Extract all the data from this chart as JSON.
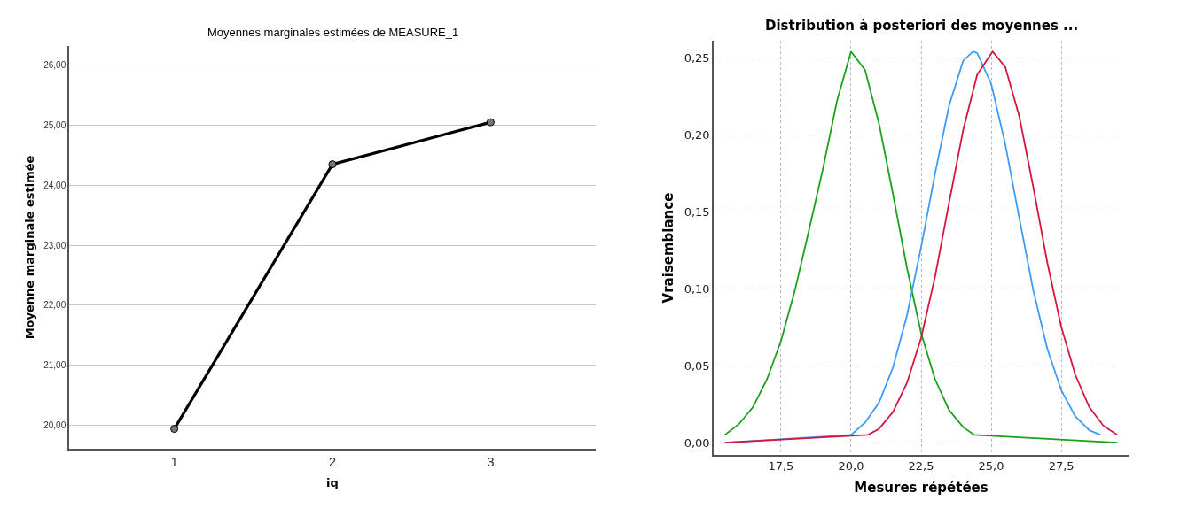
{
  "chart_data": [
    {
      "type": "line",
      "title": "Moyennes marginales estimées de MEASURE_1",
      "xlabel": "iq",
      "ylabel": "Moyenne marginale estimée",
      "categories": [
        "1",
        "2",
        "3"
      ],
      "series": [
        {
          "color": "#000000",
          "values": [
            19.94,
            24.35,
            25.05
          ]
        }
      ],
      "ylim": [
        19.61,
        26.32
      ],
      "yticks": [
        {
          "value": 20,
          "label": "20,00"
        },
        {
          "value": 21,
          "label": "21,00"
        },
        {
          "value": 22,
          "label": "22,00"
        },
        {
          "value": 23,
          "label": "23,00"
        },
        {
          "value": 24,
          "label": "24,00"
        },
        {
          "value": 25,
          "label": "25,00"
        },
        {
          "value": 26,
          "label": "26,00"
        }
      ],
      "grid": "y",
      "marker": "circle",
      "line_style": "solid"
    },
    {
      "type": "line",
      "title": "Distribution à posteriori des moyennes ...",
      "xlabel": "Mesures répétées",
      "ylabel": "Vraisemblance",
      "series": [
        {
          "color": "#1aa11a",
          "x": [
            15.5,
            16.0,
            16.5,
            17.0,
            17.5,
            18.0,
            18.5,
            19.0,
            19.5,
            20.0,
            20.5,
            21.0,
            21.5,
            22.0,
            22.5,
            23.0,
            23.5,
            24.0,
            24.4,
            29.5
          ],
          "values": [
            0.005,
            0.012,
            0.023,
            0.041,
            0.066,
            0.099,
            0.138,
            0.178,
            0.222,
            0.254,
            0.242,
            0.207,
            0.161,
            0.113,
            0.071,
            0.041,
            0.021,
            0.01,
            0.005,
            0.0
          ]
        },
        {
          "color": "#3d9bf5",
          "x": [
            15.5,
            20.0,
            20.5,
            21.0,
            21.5,
            22.0,
            22.5,
            23.0,
            23.5,
            24.0,
            24.35,
            24.5,
            25.0,
            25.5,
            26.0,
            26.5,
            27.0,
            27.5,
            28.0,
            28.5,
            28.9
          ],
          "values": [
            0.0,
            0.005,
            0.013,
            0.026,
            0.049,
            0.083,
            0.127,
            0.175,
            0.219,
            0.248,
            0.254,
            0.253,
            0.233,
            0.194,
            0.146,
            0.099,
            0.061,
            0.034,
            0.017,
            0.008,
            0.005
          ]
        },
        {
          "color": "#d4163c",
          "x": [
            15.5,
            20.6,
            21.0,
            21.5,
            22.0,
            22.5,
            23.0,
            23.5,
            24.0,
            24.5,
            25.05,
            25.5,
            26.0,
            26.5,
            27.0,
            27.5,
            28.0,
            28.5,
            29.0,
            29.5
          ],
          "values": [
            0.0,
            0.005,
            0.009,
            0.02,
            0.039,
            0.068,
            0.108,
            0.156,
            0.203,
            0.239,
            0.254,
            0.244,
            0.212,
            0.166,
            0.117,
            0.075,
            0.044,
            0.023,
            0.011,
            0.005
          ]
        }
      ],
      "xlim": [
        15.1,
        29.9
      ],
      "xticks": [
        {
          "value": 17.5,
          "label": "17,5"
        },
        {
          "value": 20,
          "label": "20,0"
        },
        {
          "value": 22.5,
          "label": "22,5"
        },
        {
          "value": 25,
          "label": "25,0"
        },
        {
          "value": 27.5,
          "label": "27,5"
        }
      ],
      "ylim": [
        -0.008,
        0.261
      ],
      "yticks": [
        {
          "value": 0,
          "label": "0,00"
        },
        {
          "value": 0.05,
          "label": "0,05"
        },
        {
          "value": 0.1,
          "label": "0,10"
        },
        {
          "value": 0.15,
          "label": "0,15"
        },
        {
          "value": 0.2,
          "label": "0,20"
        },
        {
          "value": 0.25,
          "label": "0,25"
        }
      ],
      "grid": true,
      "line_style": "solid"
    }
  ]
}
